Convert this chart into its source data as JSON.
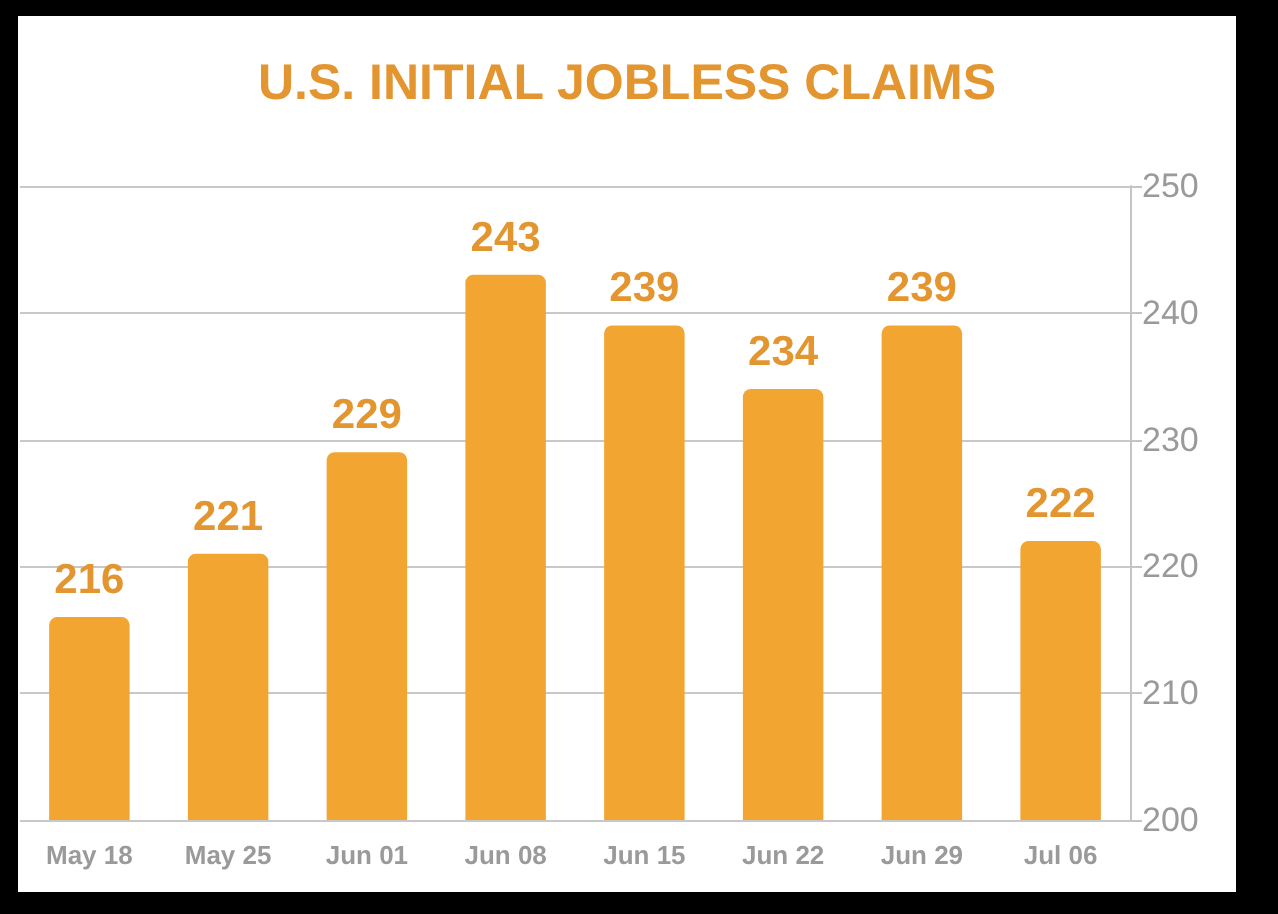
{
  "chart_data": {
    "type": "bar",
    "title": "U.S. INITIAL JOBLESS CLAIMS",
    "categories": [
      "May 18",
      "May 25",
      "Jun 01",
      "Jun 08",
      "Jun 15",
      "Jun 22",
      "Jun 29",
      "Jul 06"
    ],
    "values": [
      216,
      221,
      229,
      243,
      239,
      234,
      239,
      222
    ],
    "color": "#f2a531",
    "ylim": [
      200,
      250
    ],
    "yticks": [
      200,
      210,
      220,
      230,
      240,
      250
    ],
    "grid": "y",
    "data_labels": true
  }
}
